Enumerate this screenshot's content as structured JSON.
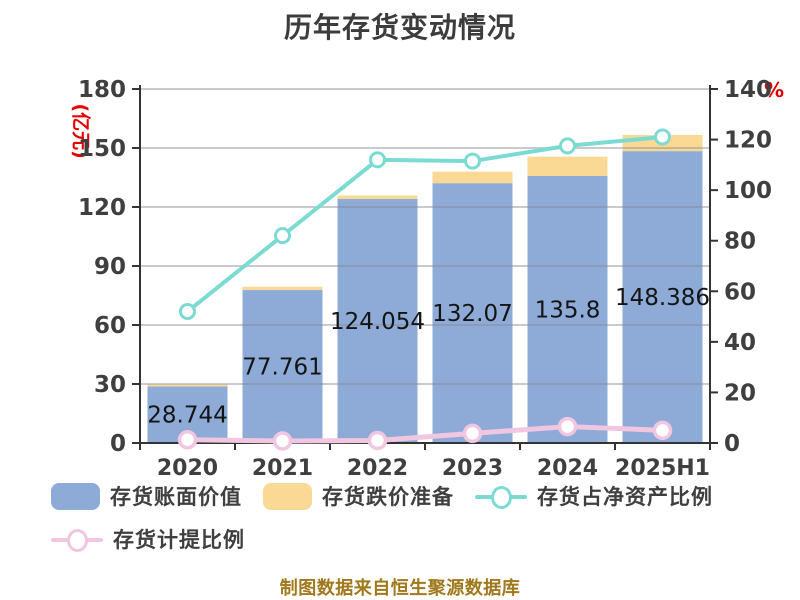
{
  "title": "历年存货变动情况",
  "footer": "制图数据来自恒生聚源数据库",
  "colors": {
    "bar_book_value": "#8eabd7",
    "bar_provision": "#fad994",
    "line_net_asset_ratio": "#7bdbd3",
    "line_provision_ratio": "#f1c6e0",
    "axis_line": "#333333",
    "grid_line": "#c8c8c8",
    "tick_label": "#3f3f3f",
    "axis_name": "#e60000",
    "value_label": "#141414",
    "title_color": "#3c3c3c",
    "footer_color": "#a0791c"
  },
  "chart_data": {
    "type": "bar",
    "title": "历年存货变动情况",
    "categories": [
      "2020",
      "2021",
      "2022",
      "2023",
      "2024",
      "2025H1"
    ],
    "series": [
      {
        "name": "存货账面价值",
        "type": "bar",
        "axis": "left",
        "values": [
          28.744,
          77.761,
          124.054,
          132.07,
          135.8,
          148.386
        ],
        "labels": [
          "28.744",
          "77.761",
          "124.054",
          "132.07",
          "135.8",
          "148.386"
        ],
        "color": "#8eabd7"
      },
      {
        "name": "存货跌价准备",
        "type": "bar",
        "axis": "left",
        "stacked_on": "存货账面价值",
        "values": [
          1.0,
          1.7,
          1.8,
          5.9,
          9.8,
          8.2
        ],
        "color": "#fad994"
      },
      {
        "name": "存货占净资产比例",
        "type": "line",
        "axis": "right",
        "values": [
          52,
          82,
          112,
          111.5,
          117.5,
          121
        ],
        "color": "#7bdbd3"
      },
      {
        "name": "存货计提比例",
        "type": "line",
        "axis": "right",
        "values": [
          1.3,
          0.8,
          1.0,
          3.8,
          6.5,
          5.0
        ],
        "color": "#f1c6e0"
      }
    ],
    "left_axis": {
      "name": "(亿元)",
      "min": 0,
      "max": 180,
      "ticks": [
        0,
        30,
        60,
        90,
        120,
        150,
        180
      ]
    },
    "right_axis": {
      "name": "%",
      "min": 0,
      "max": 140,
      "ticks": [
        0,
        20,
        40,
        60,
        80,
        100,
        120,
        140
      ]
    },
    "grid": true,
    "legend_position": "bottom"
  },
  "legend": {
    "items": [
      {
        "label": "存货账面价值",
        "marker": "bar",
        "color": "#8eabd7"
      },
      {
        "label": "存货跌价准备",
        "marker": "bar",
        "color": "#fad994"
      },
      {
        "label": "存货占净资产比例",
        "marker": "line-circle",
        "color": "#7bdbd3"
      },
      {
        "label": "存货计提比例",
        "marker": "line-circle",
        "color": "#f1c6e0"
      }
    ]
  }
}
